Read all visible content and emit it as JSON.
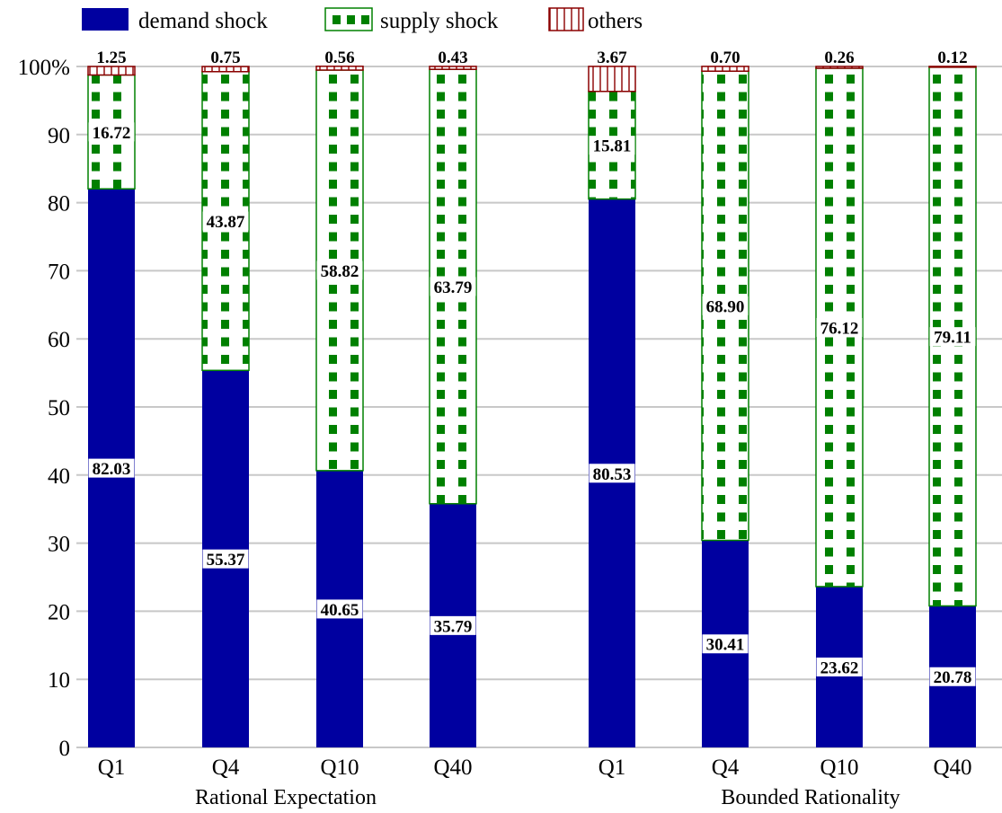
{
  "chart_data": {
    "type": "bar",
    "stacked": true,
    "percent_stacked": true,
    "ylim": [
      0,
      100
    ],
    "yticks": [
      "0",
      "10",
      "20",
      "30",
      "40",
      "50",
      "60",
      "70",
      "80",
      "90",
      "100%"
    ],
    "ytick_values": [
      0,
      10,
      20,
      30,
      40,
      50,
      60,
      70,
      80,
      90,
      100
    ],
    "grid": "horizontal",
    "legend_position": "top-left",
    "groups": [
      {
        "label": "Rational Expectation",
        "categories": [
          "Q1",
          "Q4",
          "Q10",
          "Q40"
        ]
      },
      {
        "label": "Bounded Rationality",
        "categories": [
          "Q1",
          "Q4",
          "Q10",
          "Q40"
        ]
      }
    ],
    "series": [
      {
        "name": "demand shock",
        "color": "#0000a0",
        "pattern": "solid",
        "values": [
          82.03,
          55.37,
          40.65,
          35.79,
          80.53,
          30.41,
          23.62,
          20.78
        ],
        "labels": [
          "82.03",
          "55.37",
          "40.65",
          "35.79",
          "80.53",
          "30.41",
          "23.62",
          "20.78"
        ]
      },
      {
        "name": "supply shock",
        "color": "#008000",
        "pattern": "dots",
        "values": [
          16.72,
          43.87,
          58.82,
          63.79,
          15.81,
          68.9,
          76.12,
          79.11
        ],
        "labels": [
          "16.72",
          "43.87",
          "58.82",
          "63.79",
          "15.81",
          "68.90",
          "76.12",
          "79.11"
        ]
      },
      {
        "name": "others",
        "color": "#8b0000",
        "pattern": "vertical-lines",
        "values": [
          1.25,
          0.75,
          0.56,
          0.43,
          3.67,
          0.7,
          0.26,
          0.12
        ],
        "labels": [
          "1.25",
          "0.75",
          "0.56",
          "0.43",
          "3.67",
          "0.70",
          "0.26",
          "0.12"
        ]
      }
    ]
  }
}
